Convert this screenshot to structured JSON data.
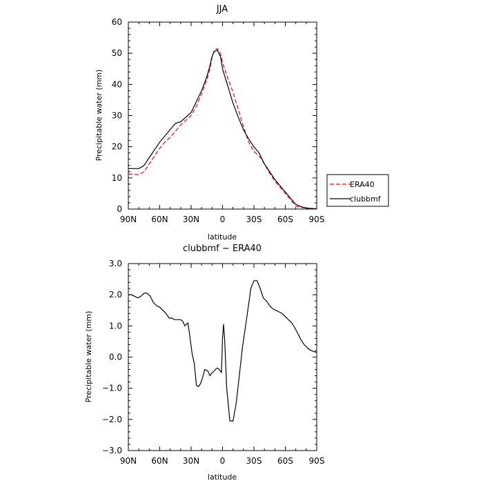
{
  "chart_data": [
    {
      "type": "line",
      "title": "JJA",
      "xlabel": "latitude",
      "ylabel": "Precipitable water (mm)",
      "xlim": [
        90,
        -90
      ],
      "ylim": [
        0,
        60
      ],
      "x_ticks": [
        90,
        60,
        30,
        0,
        -30,
        -60,
        -90
      ],
      "x_tick_labels": [
        "90N",
        "60N",
        "30N",
        "0",
        "30S",
        "60S",
        "90S"
      ],
      "y_ticks": [
        0,
        10,
        20,
        30,
        40,
        50,
        60
      ],
      "y_tick_labels": [
        "0",
        "10",
        "20",
        "30",
        "40",
        "50",
        "60"
      ],
      "grid": false,
      "legend": {
        "placement": "outside-right",
        "entries": [
          "ERA40",
          "clubbmf"
        ]
      },
      "series": [
        {
          "name": "ERA40",
          "color": "#ff0000",
          "dash": "dashed",
          "x": [
            90,
            85,
            80,
            75,
            70,
            65,
            60,
            55,
            50,
            45,
            40,
            35,
            30,
            25,
            20,
            15,
            12,
            10,
            8,
            5,
            2,
            0,
            -5,
            -10,
            -15,
            -20,
            -25,
            -30,
            -35,
            -40,
            -45,
            -50,
            -55,
            -60,
            -65,
            -70,
            -75,
            -80,
            -85,
            -90
          ],
          "y": [
            11.2,
            11.2,
            11.0,
            12.0,
            14.5,
            17.0,
            19.5,
            21.5,
            23.0,
            25.0,
            27.0,
            28.5,
            30.0,
            33.0,
            37.0,
            41.5,
            45.0,
            48.5,
            51.0,
            51.5,
            50.0,
            47.0,
            42.0,
            37.5,
            32.0,
            26.5,
            21.5,
            18.5,
            17.0,
            14.5,
            11.5,
            9.0,
            7.0,
            5.0,
            3.0,
            1.0,
            0.5,
            0.3,
            0.1,
            0.0
          ]
        },
        {
          "name": "clubbmf",
          "color": "#000000",
          "dash": "solid",
          "x": [
            90,
            85,
            80,
            75,
            70,
            65,
            60,
            55,
            50,
            45,
            40,
            35,
            30,
            25,
            20,
            15,
            12,
            10,
            8,
            5,
            2,
            0,
            -5,
            -10,
            -15,
            -20,
            -25,
            -30,
            -35,
            -40,
            -45,
            -50,
            -55,
            -60,
            -65,
            -70,
            -75,
            -80,
            -85,
            -90
          ],
          "y": [
            13.0,
            13.0,
            13.0,
            14.0,
            16.5,
            19.0,
            21.5,
            23.5,
            25.5,
            27.5,
            28.0,
            29.5,
            31.0,
            34.5,
            38.0,
            42.5,
            46.0,
            49.0,
            50.5,
            51.0,
            49.0,
            45.0,
            39.5,
            34.0,
            29.5,
            25.5,
            22.5,
            20.0,
            18.0,
            14.5,
            12.0,
            9.5,
            7.5,
            5.5,
            3.5,
            1.5,
            0.8,
            0.3,
            0.2,
            0.1
          ]
        }
      ]
    },
    {
      "type": "line",
      "title": "clubbmf − ERA40",
      "xlabel": "latitude",
      "ylabel": "Precipitable water (mm)",
      "xlim": [
        90,
        -90
      ],
      "ylim": [
        -3,
        3
      ],
      "x_ticks": [
        90,
        60,
        30,
        0,
        -30,
        -60,
        -90
      ],
      "x_tick_labels": [
        "90N",
        "60N",
        "30N",
        "0",
        "30S",
        "60S",
        "90S"
      ],
      "y_ticks": [
        -3,
        -2,
        -1,
        0,
        1,
        2,
        3
      ],
      "y_tick_labels": [
        "−3.0",
        "−2.0",
        "−1.0",
        "0.0",
        "1.0",
        "2.0",
        "3.0"
      ],
      "grid": false,
      "series": [
        {
          "color": "#000000",
          "dash": "solid",
          "x": [
            90,
            87,
            84,
            81,
            78,
            75,
            72,
            69,
            66,
            63,
            60,
            57,
            54,
            51,
            48,
            46,
            44,
            42,
            40,
            38,
            36,
            33,
            31,
            29,
            27,
            25,
            23,
            21,
            19,
            17,
            14,
            12,
            10,
            8,
            7,
            5,
            3,
            1,
            0,
            -1,
            -2,
            -4,
            -7,
            -10,
            -13,
            -16,
            -19,
            -22,
            -25,
            -27,
            -30,
            -33,
            -36,
            -39,
            -42,
            -45,
            -48,
            -51,
            -54,
            -57,
            -60,
            -63,
            -66,
            -69,
            -72,
            -75,
            -78,
            -81,
            -84,
            -87,
            -90
          ],
          "y": [
            2.0,
            2.0,
            1.95,
            1.9,
            1.95,
            2.05,
            2.05,
            1.95,
            1.75,
            1.65,
            1.6,
            1.5,
            1.4,
            1.25,
            1.25,
            1.2,
            1.2,
            1.2,
            1.2,
            1.15,
            1.0,
            1.1,
            0.6,
            0.1,
            -0.2,
            -0.9,
            -0.95,
            -0.85,
            -0.65,
            -0.4,
            -0.45,
            -0.6,
            -0.5,
            -0.45,
            -0.4,
            -0.35,
            -0.4,
            -0.5,
            0.6,
            1.05,
            0.6,
            -1.0,
            -2.05,
            -2.05,
            -1.5,
            -0.6,
            0.3,
            1.0,
            1.7,
            2.2,
            2.45,
            2.45,
            2.2,
            1.9,
            1.8,
            1.65,
            1.55,
            1.5,
            1.45,
            1.4,
            1.3,
            1.2,
            1.1,
            0.95,
            0.75,
            0.55,
            0.4,
            0.3,
            0.22,
            0.18,
            0.15
          ]
        }
      ]
    }
  ]
}
